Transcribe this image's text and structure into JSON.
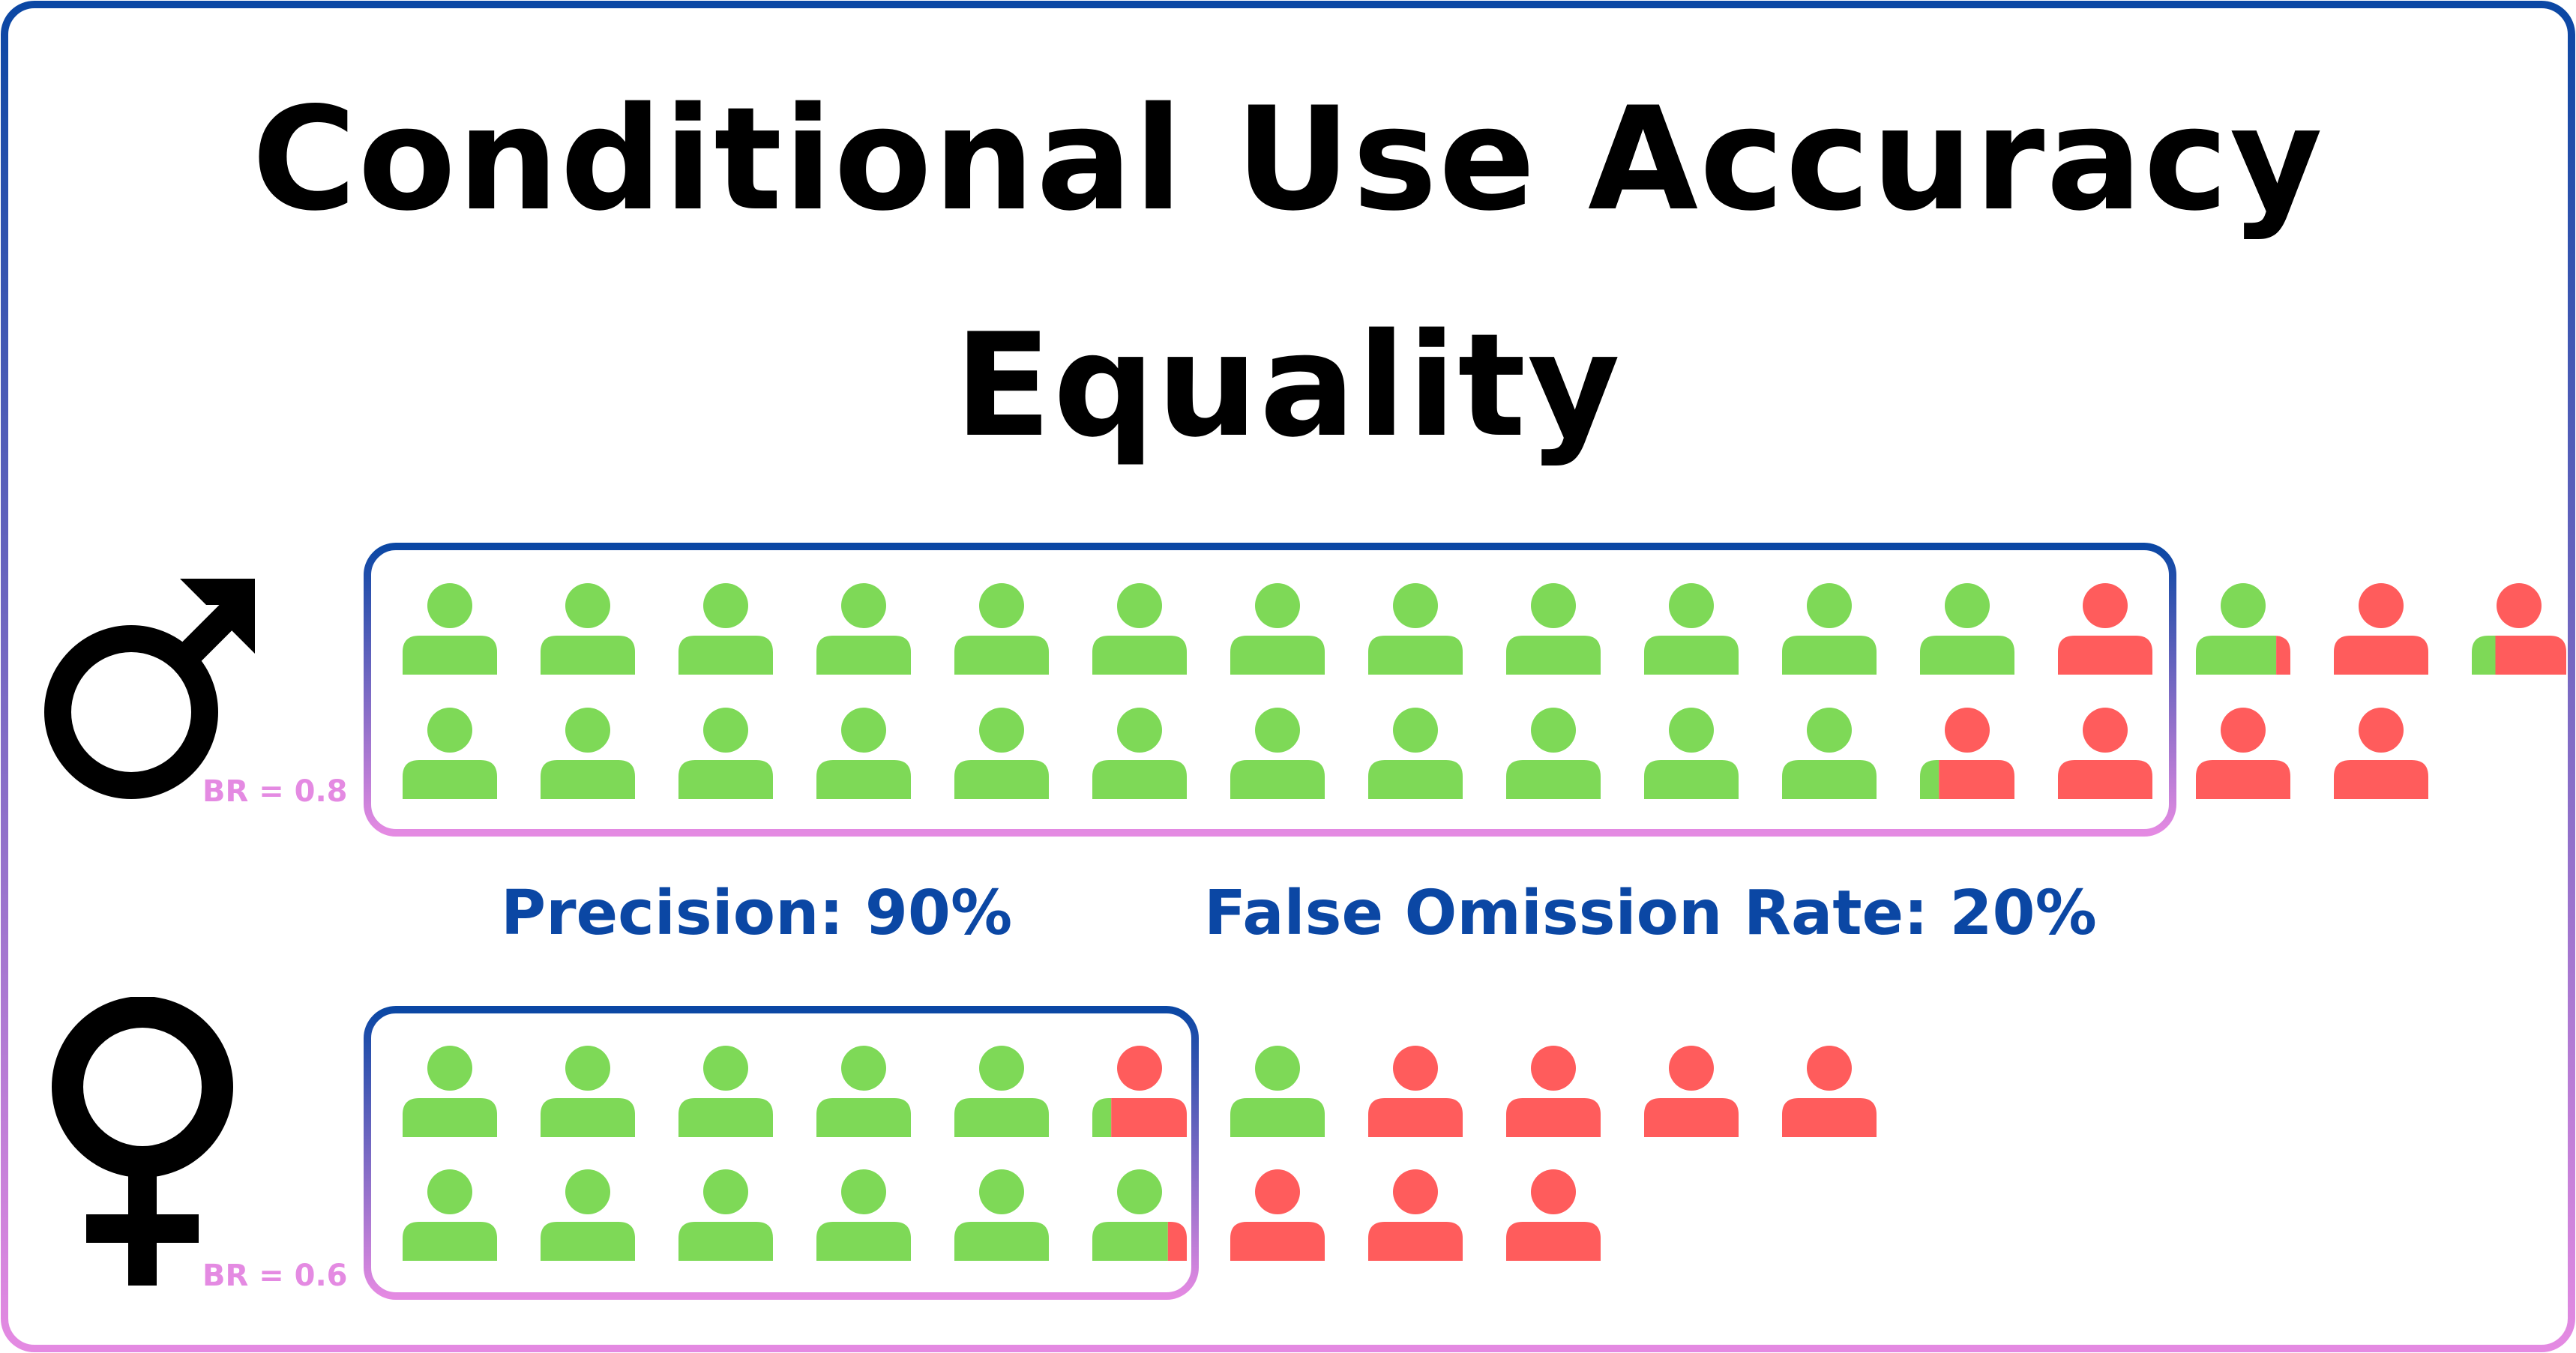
{
  "title": {
    "line1": "Conditional Use Accuracy",
    "line2": "Equality"
  },
  "metrics": {
    "precision": "Precision: 90%",
    "false_omission_rate": "False Omission Rate: 20%"
  },
  "groups": [
    {
      "name": "male",
      "symbol": "male-symbol-icon",
      "base_rate_label": "BR = 0.8",
      "rows": [
        [
          1,
          1,
          1,
          1,
          1,
          1,
          1,
          1,
          1,
          1,
          1,
          1,
          0,
          0.85,
          0,
          0.25
        ],
        [
          1,
          1,
          1,
          1,
          1,
          1,
          1,
          1,
          1,
          1,
          1,
          0.2,
          0,
          0,
          0
        ]
      ],
      "predicted_positive_in_box": 26
    },
    {
      "name": "female",
      "symbol": "female-symbol-icon",
      "base_rate_label": "BR = 0.6",
      "rows": [
        [
          1,
          1,
          1,
          1,
          1,
          0.2,
          1,
          0,
          0,
          0,
          0
        ],
        [
          1,
          1,
          1,
          1,
          1,
          0.8,
          0,
          0,
          0
        ]
      ],
      "predicted_positive_in_box": 11
    }
  ],
  "colors": {
    "positive": "#7ed957",
    "negative": "#ff5c5c",
    "box_top": "#0b47a4",
    "box_bottom": "#e48ae2",
    "metric_text": "#0b47a4",
    "title_text": "#000000"
  }
}
